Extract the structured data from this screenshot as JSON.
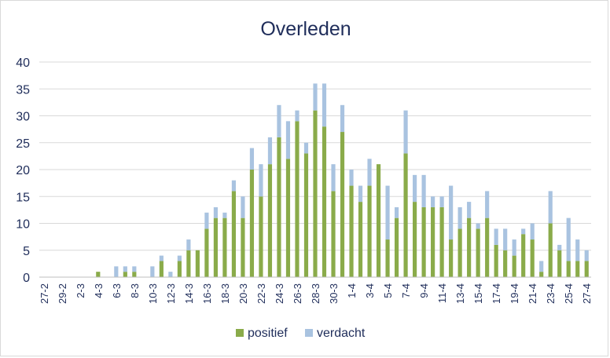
{
  "chart_data": {
    "type": "bar",
    "stacked": true,
    "title": "Overleden",
    "xlabel": "",
    "ylabel": "",
    "ylim": [
      0,
      40
    ],
    "yticks": [
      0,
      5,
      10,
      15,
      20,
      25,
      30,
      35,
      40
    ],
    "grid": true,
    "legend": "bottom",
    "categories": [
      "27-2",
      "28-2",
      "29-2",
      "1-3",
      "2-3",
      "3-3",
      "4-3",
      "5-3",
      "6-3",
      "7-3",
      "8-3",
      "9-3",
      "10-3",
      "11-3",
      "12-3",
      "13-3",
      "14-3",
      "15-3",
      "16-3",
      "17-3",
      "18-3",
      "19-3",
      "20-3",
      "21-3",
      "22-3",
      "23-3",
      "24-3",
      "25-3",
      "26-3",
      "27-3",
      "28-3",
      "29-3",
      "30-3",
      "31-3",
      "1-4",
      "2-4",
      "3-4",
      "4-4",
      "5-4",
      "6-4",
      "7-4",
      "8-4",
      "9-4",
      "10-4",
      "11-4",
      "12-4",
      "13-4",
      "14-4",
      "15-4",
      "16-4",
      "17-4",
      "18-4",
      "19-4",
      "20-4",
      "21-4",
      "22-4",
      "23-4",
      "24-4",
      "25-4",
      "26-4",
      "27-4"
    ],
    "series": [
      {
        "name": "positief",
        "color": "#8aab4a",
        "values": [
          0,
          0,
          0,
          0,
          0,
          0,
          1,
          0,
          0,
          1,
          1,
          0,
          0,
          3,
          0,
          3,
          5,
          5,
          9,
          11,
          11,
          16,
          11,
          20,
          15,
          21,
          26,
          22,
          29,
          23,
          31,
          28,
          16,
          27,
          17,
          14,
          17,
          21,
          7,
          11,
          23,
          14,
          13,
          13,
          13,
          7,
          9,
          11,
          9,
          11,
          6,
          5,
          4,
          8,
          7,
          1,
          10,
          5,
          3,
          3,
          3
        ]
      },
      {
        "name": "verdacht",
        "color": "#a9c3e0",
        "values": [
          0,
          0,
          0,
          0,
          0,
          0,
          0,
          0,
          2,
          1,
          1,
          0,
          2,
          1,
          1,
          1,
          2,
          0,
          3,
          2,
          1,
          2,
          4,
          4,
          6,
          5,
          6,
          7,
          2,
          2,
          5,
          8,
          5,
          5,
          3,
          3,
          5,
          0,
          10,
          2,
          8,
          5,
          6,
          2,
          2,
          10,
          4,
          3,
          1,
          5,
          3,
          4,
          3,
          1,
          3,
          2,
          6,
          1,
          8,
          4,
          2
        ]
      }
    ]
  }
}
